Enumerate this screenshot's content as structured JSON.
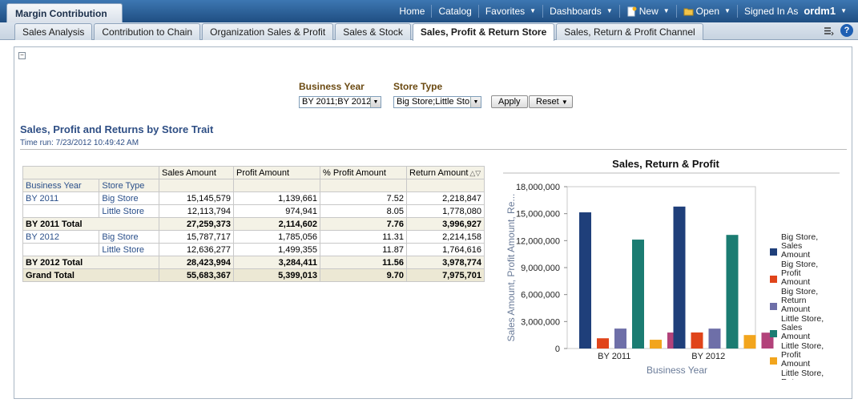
{
  "app": {
    "title": "Margin Contribution"
  },
  "topnav": {
    "home": "Home",
    "catalog": "Catalog",
    "favorites": "Favorites",
    "dashboards": "Dashboards",
    "new": "New",
    "open": "Open",
    "signed_in_as": "Signed In As",
    "user": "ordm1"
  },
  "tabs": [
    {
      "label": "Sales Analysis"
    },
    {
      "label": "Contribution to Chain"
    },
    {
      "label": "Organization Sales & Profit"
    },
    {
      "label": "Sales & Stock"
    },
    {
      "label": "Sales, Profit & Return Store"
    },
    {
      "label": "Sales, Return & Profit Channel"
    }
  ],
  "active_tab": 4,
  "prompts": {
    "business_year_label": "Business Year",
    "business_year_value": "BY 2011;BY 2012",
    "store_type_label": "Store Type",
    "store_type_value": "Big Store;Little Sto",
    "apply": "Apply",
    "reset": "Reset"
  },
  "report": {
    "title": "Sales, Profit and Returns by Store Trait",
    "time_run": "Time run: 7/23/2012 10:49:42 AM"
  },
  "table": {
    "row_headers": [
      "Business Year",
      "Store Type"
    ],
    "columns": [
      "Sales Amount",
      "Profit Amount",
      "% Profit Amount",
      "Return Amount"
    ],
    "rows": [
      {
        "year": "BY 2011",
        "store": "Big Store",
        "values": [
          "15,145,579",
          "1,139,661",
          "7.52",
          "2,218,847"
        ]
      },
      {
        "year": "",
        "store": "Little Store",
        "values": [
          "12,113,794",
          "974,941",
          "8.05",
          "1,778,080"
        ]
      },
      {
        "total": "BY 2011 Total",
        "values": [
          "27,259,373",
          "2,114,602",
          "7.76",
          "3,996,927"
        ]
      },
      {
        "year": "BY 2012",
        "store": "Big Store",
        "values": [
          "15,787,717",
          "1,785,056",
          "11.31",
          "2,214,158"
        ]
      },
      {
        "year": "",
        "store": "Little Store",
        "values": [
          "12,636,277",
          "1,499,355",
          "11.87",
          "1,764,616"
        ]
      },
      {
        "total": "BY 2012 Total",
        "values": [
          "28,423,994",
          "3,284,411",
          "11.56",
          "3,978,774"
        ]
      }
    ],
    "grand_total": {
      "label": "Grand Total",
      "values": [
        "55,683,367",
        "5,399,013",
        "9.70",
        "7,975,701"
      ]
    }
  },
  "chart_data": {
    "type": "bar",
    "title": "Sales, Return & Profit",
    "xlabel": "Business Year",
    "ylabel": "Sales Amount, Profit Amount, Re...",
    "categories": [
      "BY 2011",
      "BY 2012"
    ],
    "ylim": [
      0,
      18000000
    ],
    "yticks": [
      "0",
      "3,000,000",
      "6,000,000",
      "9,000,000",
      "12,000,000",
      "15,000,000",
      "18,000,000"
    ],
    "legend_position": "right",
    "series": [
      {
        "name": "Big Store, Sales Amount",
        "color": "#1f3f7a",
        "values": [
          15145579,
          15787717
        ]
      },
      {
        "name": "Big Store, Profit Amount",
        "color": "#e0441a",
        "values": [
          1139661,
          1785056
        ]
      },
      {
        "name": "Big Store, Return Amount",
        "color": "#6e6fa8",
        "values": [
          2218847,
          2214158
        ]
      },
      {
        "name": "Little Store, Sales Amount",
        "color": "#1b7c72",
        "values": [
          12113794,
          12636277
        ]
      },
      {
        "name": "Little Store, Profit Amount",
        "color": "#f2a51d",
        "values": [
          974941,
          1499355
        ]
      },
      {
        "name": "Little Store, Return Amount",
        "color": "#b2427a",
        "values": [
          1778080,
          1764616
        ]
      }
    ]
  }
}
